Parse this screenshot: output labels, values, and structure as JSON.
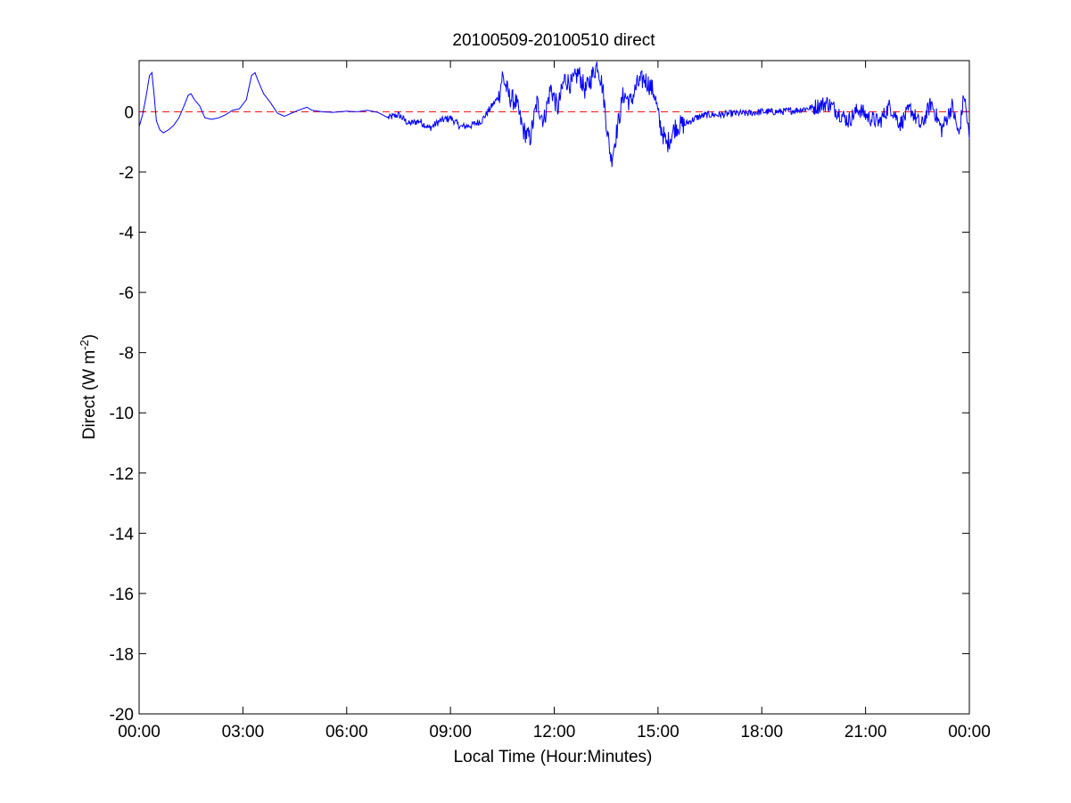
{
  "chart_data": {
    "type": "line",
    "title": "20100509-20100510 direct",
    "xlabel": "Local Time (Hour:Minutes)",
    "ylabel": {
      "prefix": "Direct (W m",
      "superscript": "-2",
      "suffix": ")"
    },
    "xlim": [
      0,
      24
    ],
    "ylim": [
      -20,
      1.7
    ],
    "x_ticks": [
      0,
      3,
      6,
      9,
      12,
      15,
      18,
      21,
      24
    ],
    "x_tick_labels": [
      "00:00",
      "03:00",
      "06:00",
      "09:00",
      "12:00",
      "15:00",
      "18:00",
      "21:00",
      "00:00"
    ],
    "y_ticks": [
      -20,
      -18,
      -16,
      -14,
      -12,
      -10,
      -8,
      -6,
      -4,
      -2,
      0
    ],
    "y_tick_labels": [
      "-20",
      "-18",
      "-16",
      "-14",
      "-12",
      "-10",
      "-8",
      "-6",
      "-4",
      "-2",
      "0"
    ],
    "grid": false,
    "reference_line": {
      "y": 0,
      "style": "dashed",
      "color": "#ff0000"
    },
    "series": [
      {
        "color": "#0000ff",
        "x": [
          0.0,
          0.1,
          0.2,
          0.3,
          0.37,
          0.43,
          0.5,
          0.6,
          0.7,
          0.85,
          1.0,
          1.15,
          1.3,
          1.42,
          1.5,
          1.6,
          1.75,
          1.9,
          2.1,
          2.3,
          2.5,
          2.7,
          2.9,
          3.1,
          3.25,
          3.35,
          3.45,
          3.6,
          3.8,
          4.0,
          4.2,
          4.4,
          4.6,
          4.85,
          5.0,
          5.3,
          5.6,
          6.0,
          6.3,
          6.6,
          6.9,
          7.2,
          7.5,
          7.8,
          8.1,
          8.4,
          8.7,
          9.0,
          9.3,
          9.6,
          9.9,
          10.2,
          10.4,
          10.5,
          10.7,
          10.9,
          11.1,
          11.3,
          11.5,
          11.7,
          11.9,
          12.1,
          12.3,
          12.5,
          12.7,
          12.9,
          13.1,
          13.25,
          13.4,
          13.55,
          13.65,
          13.8,
          14.0,
          14.2,
          14.4,
          14.6,
          14.75,
          14.9,
          15.05,
          15.25,
          15.5,
          15.8,
          16.1,
          16.4,
          16.8,
          17.2,
          17.6,
          18.0,
          18.5,
          19.0,
          19.5,
          19.9,
          20.2,
          20.5,
          20.8,
          21.1,
          21.4,
          21.7,
          22.0,
          22.3,
          22.6,
          22.9,
          23.2,
          23.5,
          23.7,
          23.85,
          24.0
        ],
        "y": [
          -0.5,
          -0.1,
          0.5,
          1.2,
          1.3,
          0.6,
          -0.3,
          -0.6,
          -0.7,
          -0.6,
          -0.45,
          -0.2,
          0.2,
          0.55,
          0.6,
          0.4,
          0.2,
          -0.2,
          -0.25,
          -0.2,
          -0.1,
          0.05,
          0.1,
          0.4,
          1.2,
          1.3,
          1.0,
          0.6,
          0.3,
          -0.05,
          -0.15,
          -0.05,
          0.05,
          0.15,
          0.05,
          0.0,
          -0.02,
          0.02,
          0.0,
          0.05,
          -0.02,
          -0.2,
          -0.1,
          -0.4,
          -0.3,
          -0.55,
          -0.3,
          -0.2,
          -0.5,
          -0.45,
          -0.3,
          0.2,
          0.5,
          1.2,
          0.5,
          0.3,
          -0.6,
          -0.9,
          0.3,
          -0.3,
          0.8,
          0.1,
          1.1,
          0.9,
          1.3,
          0.7,
          1.2,
          1.6,
          0.8,
          -0.8,
          -1.6,
          -0.7,
          0.6,
          0.3,
          0.9,
          1.1,
          0.9,
          0.6,
          -0.4,
          -1.1,
          -0.5,
          -0.4,
          -0.2,
          -0.1,
          -0.1,
          -0.05,
          -0.05,
          0.0,
          0.0,
          0.05,
          0.15,
          0.3,
          0.0,
          -0.3,
          0.1,
          -0.2,
          -0.35,
          0.2,
          -0.4,
          0.1,
          -0.5,
          0.3,
          -0.6,
          0.2,
          -0.8,
          0.6,
          -0.9
        ]
      }
    ]
  }
}
